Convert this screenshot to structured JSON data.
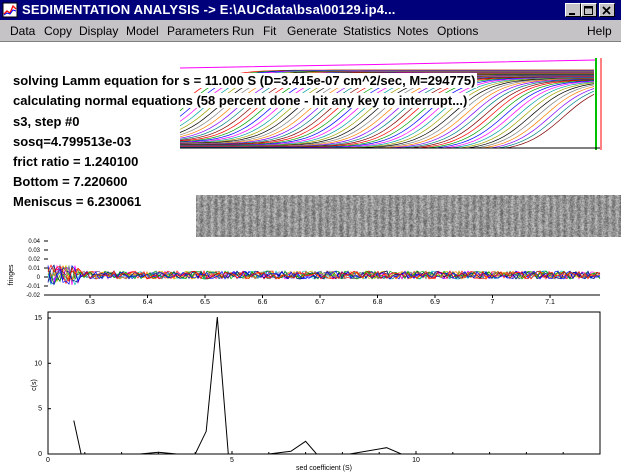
{
  "window": {
    "title": "SEDIMENTATION ANALYSIS -> E:\\AUCdata\\bsa\\00129.ip4...",
    "minimize_icon": "minimize-icon",
    "maximize_icon": "maximize-icon",
    "close_icon": "close-icon"
  },
  "menu": {
    "items": [
      "Data",
      "Copy",
      "Display",
      "Model",
      "Parameters",
      "Run",
      "Fit",
      "Generate",
      "Statistics",
      "Notes",
      "Options"
    ],
    "help": "Help"
  },
  "status": {
    "line1": "solving Lamm equation for s = 11.000 S (D=3.415e-07 cm^2/sec, M=294775)",
    "line2": "calculating normal equations (58 percent done - hit any key to interrupt...)",
    "line3": "s3, step #0",
    "line4": "sosq=4.799513e-03",
    "line5": "frict ratio = 1.240100",
    "line6": "Bottom = 7.220600",
    "line7": "Meniscus = 6.230061"
  },
  "residuals": {
    "ylabel": "fringes",
    "yticks": [
      "0.04",
      "0.03",
      "0.02",
      "0.01",
      "0",
      "-0.01",
      "-0.02"
    ],
    "xticks": [
      "6.3",
      "6.4",
      "6.5",
      "6.6",
      "6.7",
      "6.8",
      "6.9",
      "7",
      "7.1"
    ]
  },
  "chart_data": {
    "type": "line",
    "xlabel": "sed coefficient (S)",
    "ylabel": "c(s)",
    "xlim": [
      0,
      15
    ],
    "ylim": [
      0,
      15
    ],
    "xticks": [
      "0",
      "5",
      "10"
    ],
    "yticks": [
      "0",
      "5",
      "10",
      "15"
    ],
    "x": [
      0.7,
      0.9,
      2.5,
      3,
      3.5,
      4.0,
      4.3,
      4.6,
      4.9,
      5.5,
      6.0,
      6.6,
      7.0,
      7.3,
      7.7,
      8.2,
      9.2,
      9.6,
      10.0,
      11.0,
      12.0,
      13.0,
      14.0,
      14.6
    ],
    "values": [
      3.7,
      0,
      0,
      0.2,
      0,
      0,
      2.5,
      15.1,
      0,
      0,
      0,
      0.3,
      1.4,
      0,
      0,
      0,
      0.7,
      0,
      0,
      0,
      0,
      0,
      0,
      0
    ]
  }
}
